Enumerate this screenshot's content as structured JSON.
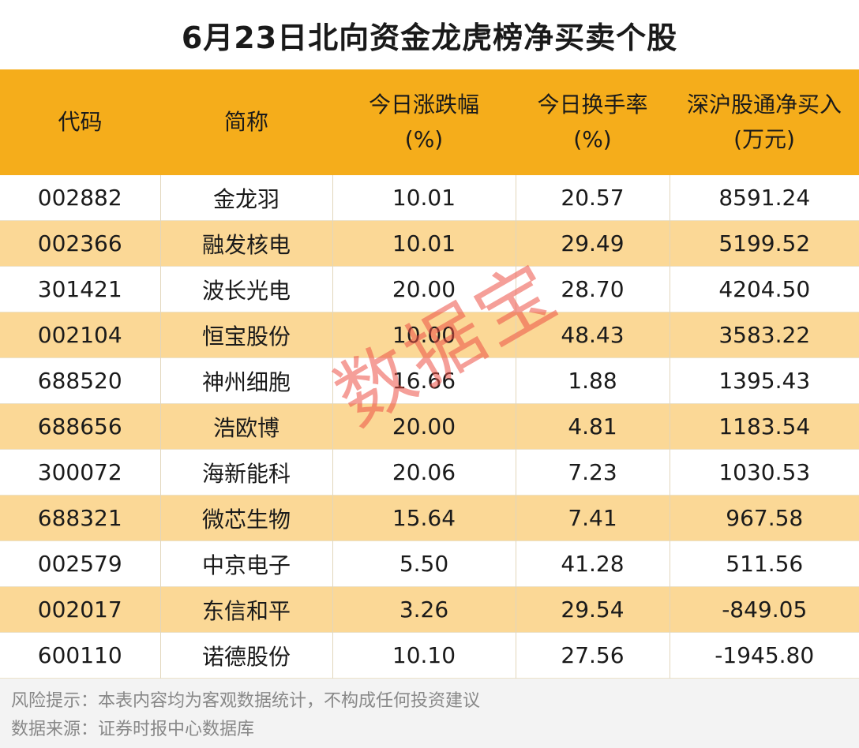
{
  "title": "6月23日北向资金龙虎榜净买卖个股",
  "headers": [
    "代码",
    "简称",
    "今日涨跌幅",
    "今日换手率",
    "深沪股通净买入"
  ],
  "header_units": [
    "",
    "",
    "(%)",
    "(%)",
    "(万元)"
  ],
  "rows": [
    [
      "002882",
      "金龙羽",
      "10.01",
      "20.57",
      "8591.24"
    ],
    [
      "002366",
      "融发核电",
      "10.01",
      "29.49",
      "5199.52"
    ],
    [
      "301421",
      "波长光电",
      "20.00",
      "28.70",
      "4204.50"
    ],
    [
      "002104",
      "恒宝股份",
      "10.00",
      "48.43",
      "3583.22"
    ],
    [
      "688520",
      "神州细胞",
      "16.66",
      "1.88",
      "1395.43"
    ],
    [
      "688656",
      "浩欧博",
      "20.00",
      "4.81",
      "1183.54"
    ],
    [
      "300072",
      "海新能科",
      "20.06",
      "7.23",
      "1030.53"
    ],
    [
      "688321",
      "微芯生物",
      "15.64",
      "7.41",
      "967.58"
    ],
    [
      "002579",
      "中京电子",
      "5.50",
      "41.28",
      "511.56"
    ],
    [
      "002017",
      "东信和平",
      "3.26",
      "29.54",
      "-849.05"
    ],
    [
      "600110",
      "诺德股份",
      "10.10",
      "27.56",
      "-1945.80"
    ]
  ],
  "footer": {
    "risk_note": "风险提示：本表内容均为客观数据统计，不构成任何投资建议",
    "source": "数据来源：证券时报中心数据库"
  },
  "watermark": "数据宝",
  "colors": {
    "header_bg": "#f5ad1b",
    "stripe_bg": "#fbd896",
    "watermark": "#ec5046",
    "footer_bg": "#f3f3f3"
  }
}
